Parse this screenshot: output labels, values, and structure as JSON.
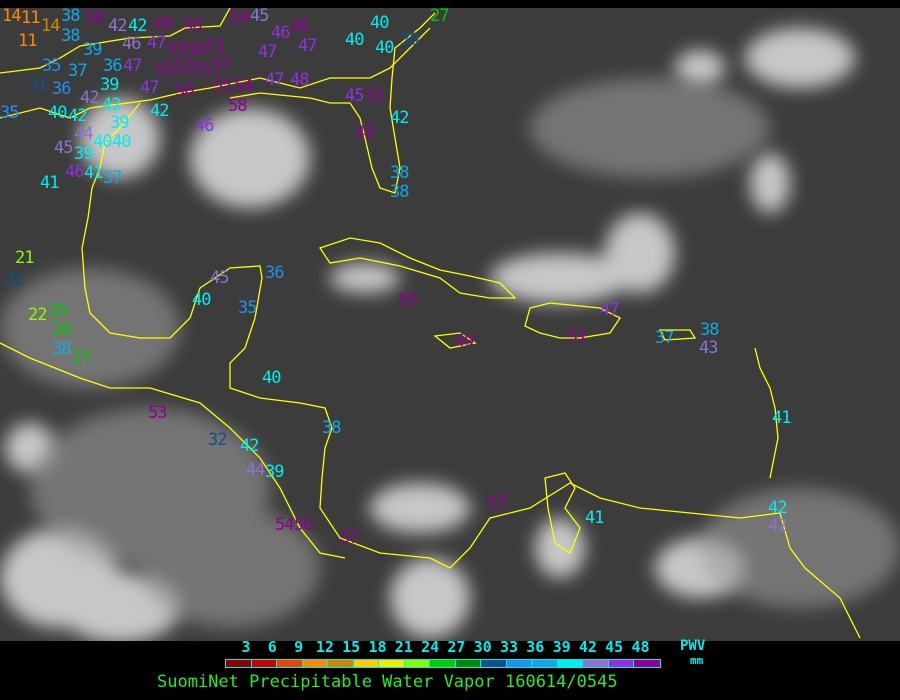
{
  "caption": "SuomiNet Precipitable Water Vapor 160614/0545",
  "legend": {
    "unit_title": "PWV",
    "unit": "mm",
    "ticks": [
      "3",
      "6",
      "9",
      "12",
      "15",
      "18",
      "21",
      "24",
      "27",
      "30",
      "33",
      "36",
      "39",
      "42",
      "45",
      "48"
    ],
    "colors": [
      "#8b0000",
      "#cc0000",
      "#ee4400",
      "#ff8800",
      "#cc8800",
      "#ffcc00",
      "#eeee00",
      "#88ff00",
      "#00cc00",
      "#008800",
      "#105090",
      "#2090ee",
      "#10a8e8",
      "#00eeee",
      "#9070d0",
      "#9030e0",
      "#900090"
    ]
  },
  "colors": {
    "coastline": "#ffff00",
    "background": "#000000",
    "ocean": "#3c3c3c",
    "clouds": "#e8e8e8"
  },
  "stations": [
    {
      "v": "14",
      "c": "#ff8800"
    },
    {
      "v": "11",
      "c": "#ff8800"
    },
    {
      "v": "14",
      "c": "#cc8800"
    },
    {
      "v": "11",
      "c": "#ff8800"
    },
    {
      "v": "38",
      "c": "#10a8e8"
    },
    {
      "v": "38",
      "c": "#10a8e8"
    },
    {
      "v": "50",
      "c": "#900090"
    },
    {
      "v": "42",
      "c": "#9070d0"
    },
    {
      "v": "42",
      "c": "#00eeee"
    },
    {
      "v": "46",
      "c": "#9070d0"
    },
    {
      "v": "47",
      "c": "#9030e0"
    },
    {
      "v": "49",
      "c": "#900090"
    },
    {
      "v": "56",
      "c": "#900090"
    },
    {
      "v": "54",
      "c": "#900090"
    },
    {
      "v": "45",
      "c": "#9070d0"
    },
    {
      "v": "48",
      "c": "#900090"
    },
    {
      "v": "46",
      "c": "#9030e0"
    },
    {
      "v": "47",
      "c": "#9030e0"
    },
    {
      "v": "47",
      "c": "#9030e0"
    },
    {
      "v": "40",
      "c": "#00eeee"
    },
    {
      "v": "40",
      "c": "#00eeee"
    },
    {
      "v": "40",
      "c": "#00eeee"
    },
    {
      "v": "30",
      "c": "#105090"
    },
    {
      "v": "27",
      "c": "#00cc00"
    },
    {
      "v": "39",
      "c": "#10a8e8"
    },
    {
      "v": "35",
      "c": "#2090ee"
    },
    {
      "v": "37",
      "c": "#10a8e8"
    },
    {
      "v": "36",
      "c": "#10a8e8"
    },
    {
      "v": "47",
      "c": "#9030e0"
    },
    {
      "v": "31",
      "c": "#105090"
    },
    {
      "v": "36",
      "c": "#2090ee"
    },
    {
      "v": "39",
      "c": "#00eeee"
    },
    {
      "v": "42",
      "c": "#00eeee"
    },
    {
      "v": "47",
      "c": "#9030e0"
    },
    {
      "v": "55",
      "c": "#900090"
    },
    {
      "v": "58",
      "c": "#900090"
    },
    {
      "v": "61",
      "c": "#900090"
    },
    {
      "v": "57",
      "c": "#900090"
    },
    {
      "v": "55",
      "c": "#900090"
    },
    {
      "v": "52",
      "c": "#900090"
    },
    {
      "v": "55",
      "c": "#900090"
    },
    {
      "v": "50",
      "c": "#900090"
    },
    {
      "v": "55",
      "c": "#900090"
    },
    {
      "v": "54",
      "c": "#900090"
    },
    {
      "v": "58",
      "c": "#900090"
    },
    {
      "v": "47",
      "c": "#9030e0"
    },
    {
      "v": "48",
      "c": "#9030e0"
    },
    {
      "v": "45",
      "c": "#9030e0"
    },
    {
      "v": "51",
      "c": "#900090"
    },
    {
      "v": "35",
      "c": "#2090ee"
    },
    {
      "v": "40",
      "c": "#00eeee"
    },
    {
      "v": "42",
      "c": "#00eeee"
    },
    {
      "v": "42",
      "c": "#9070d0"
    },
    {
      "v": "39",
      "c": "#00eeee"
    },
    {
      "v": "44",
      "c": "#9070d0"
    },
    {
      "v": "40",
      "c": "#00eeee"
    },
    {
      "v": "40",
      "c": "#00eeee"
    },
    {
      "v": "39",
      "c": "#00eeee"
    },
    {
      "v": "45",
      "c": "#9070d0"
    },
    {
      "v": "46",
      "c": "#9030e0"
    },
    {
      "v": "41",
      "c": "#00eeee"
    },
    {
      "v": "37",
      "c": "#10a8e8"
    },
    {
      "v": "41",
      "c": "#00eeee"
    },
    {
      "v": "46",
      "c": "#9030e0"
    },
    {
      "v": "42",
      "c": "#00eeee"
    },
    {
      "v": "49",
      "c": "#900090"
    },
    {
      "v": "38",
      "c": "#10a8e8"
    },
    {
      "v": "38",
      "c": "#10a8e8"
    },
    {
      "v": "42",
      "c": "#00eeee"
    },
    {
      "v": "21",
      "c": "#88ff00"
    },
    {
      "v": "31",
      "c": "#105090"
    },
    {
      "v": "22",
      "c": "#88ff00"
    },
    {
      "v": "25",
      "c": "#00cc00"
    },
    {
      "v": "26",
      "c": "#00cc00"
    },
    {
      "v": "38",
      "c": "#10a8e8"
    },
    {
      "v": "27",
      "c": "#00cc00"
    },
    {
      "v": "45",
      "c": "#9070d0"
    },
    {
      "v": "36",
      "c": "#2090ee"
    },
    {
      "v": "40",
      "c": "#00eeee"
    },
    {
      "v": "35",
      "c": "#2090ee"
    },
    {
      "v": "40",
      "c": "#00eeee"
    },
    {
      "v": "53",
      "c": "#900090"
    },
    {
      "v": "32",
      "c": "#105090"
    },
    {
      "v": "42",
      "c": "#00eeee"
    },
    {
      "v": "44",
      "c": "#9070d0"
    },
    {
      "v": "39",
      "c": "#00eeee"
    },
    {
      "v": "38",
      "c": "#10a8e8"
    },
    {
      "v": "54",
      "c": "#900090"
    },
    {
      "v": "56",
      "c": "#900090"
    },
    {
      "v": "57",
      "c": "#900090"
    },
    {
      "v": "55",
      "c": "#900090"
    },
    {
      "v": "49",
      "c": "#900090"
    },
    {
      "v": "51",
      "c": "#900090"
    },
    {
      "v": "47",
      "c": "#9030e0"
    },
    {
      "v": "37",
      "c": "#10a8e8"
    },
    {
      "v": "38",
      "c": "#10a8e8"
    },
    {
      "v": "43",
      "c": "#9070d0"
    },
    {
      "v": "41",
      "c": "#00eeee"
    },
    {
      "v": "57",
      "c": "#900090"
    },
    {
      "v": "41",
      "c": "#00eeee"
    },
    {
      "v": "42",
      "c": "#00eeee"
    },
    {
      "v": "42",
      "c": "#9070d0"
    }
  ]
}
